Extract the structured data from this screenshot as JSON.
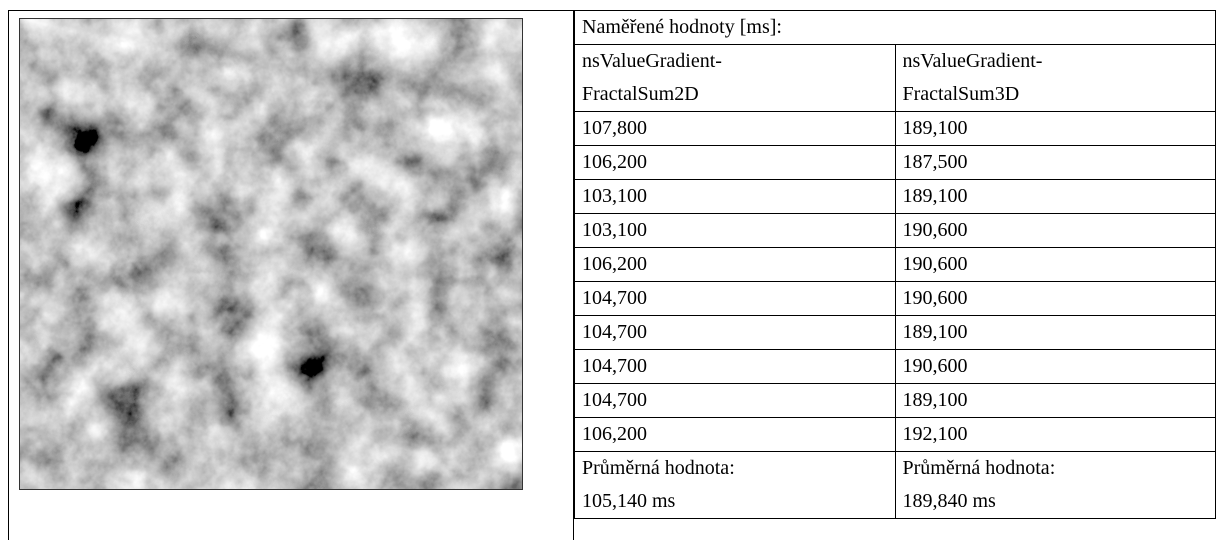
{
  "table": {
    "title": "Naměřené hodnoty [ms]:",
    "columns": [
      "nsValueGradient-\nFractalSum2D",
      "nsValueGradient-\nFractalSum3D"
    ],
    "rows": [
      [
        "107,800",
        "189,100"
      ],
      [
        "106,200",
        "187,500"
      ],
      [
        "103,100",
        "189,100"
      ],
      [
        "103,100",
        "190,600"
      ],
      [
        "106,200",
        "190,600"
      ],
      [
        "104,700",
        "190,600"
      ],
      [
        "104,700",
        "189,100"
      ],
      [
        "104,700",
        "190,600"
      ],
      [
        "104,700",
        "189,100"
      ],
      [
        "106,200",
        "192,100"
      ]
    ],
    "average_label": "Průměrná hodnota:",
    "averages": [
      "105,140 ms",
      "189,840 ms"
    ]
  }
}
